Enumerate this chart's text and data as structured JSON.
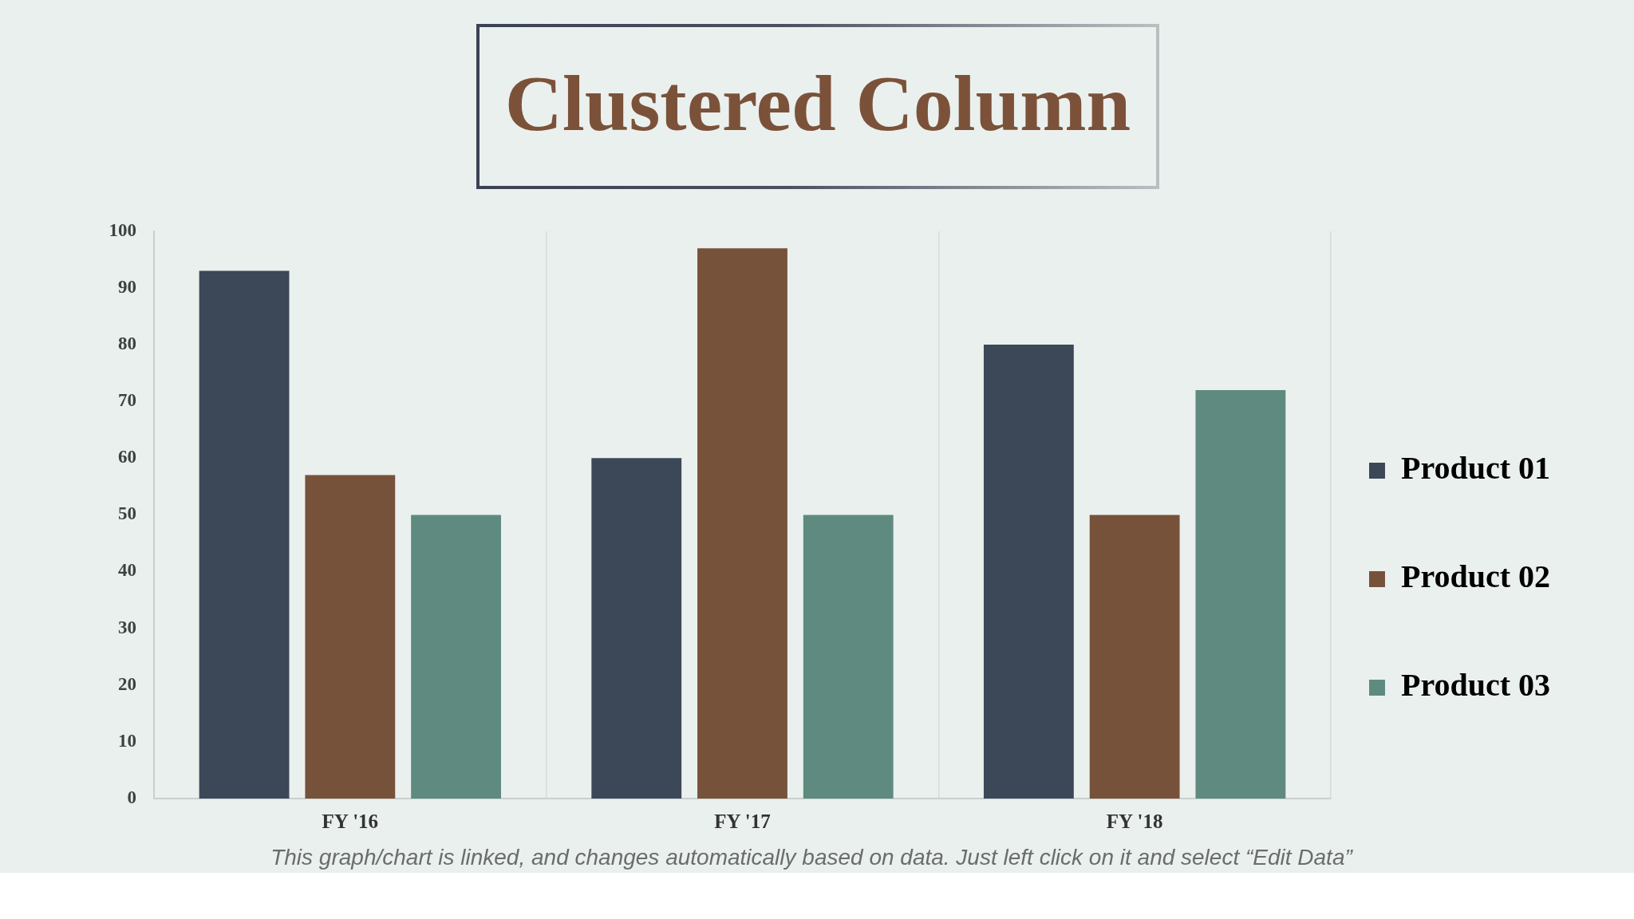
{
  "chart_data": {
    "type": "bar",
    "title": "Clustered Column",
    "categories": [
      "FY '16",
      "FY '17",
      "FY '18"
    ],
    "series": [
      {
        "name": "Product 01",
        "color": "#3c4758",
        "values": [
          93,
          60,
          80
        ]
      },
      {
        "name": "Product 02",
        "color": "#77523b",
        "values": [
          57,
          97,
          50
        ]
      },
      {
        "name": "Product 03",
        "color": "#5f8a80",
        "values": [
          50,
          50,
          72
        ]
      }
    ],
    "ylim": [
      0,
      100
    ],
    "yticks": [
      0,
      10,
      20,
      30,
      40,
      50,
      60,
      70,
      80,
      90,
      100
    ],
    "grid": "x",
    "legend": "right",
    "annotations": [
      "This graph/chart is linked, and changes automatically based on data. Just left click on it and select “Edit Data”"
    ]
  }
}
